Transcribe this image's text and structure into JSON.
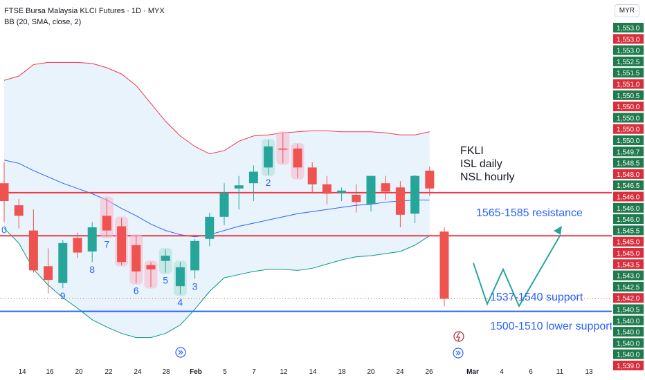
{
  "header": {
    "title": "FTSE Bursa Malaysia KLCI Futures · 1D · MYX",
    "indicator": "BB (20, SMA, close, 2)"
  },
  "currency": "MYR",
  "colors": {
    "up": "#26a69a",
    "down": "#ef5350",
    "upper_band": "#f23645",
    "middle_band": "#2962ff",
    "lower_band": "#089981",
    "band_fill": "#e3f0fa",
    "hline_red": "#f23645",
    "hline_blue": "#2962ff",
    "annotation": "#2962ff",
    "label_green": "#1f7a4d",
    "label_red": "#d92f3d"
  },
  "price_labels": [
    {
      "text": "1,553.0",
      "color": "green"
    },
    {
      "text": "1,553.0",
      "color": "red"
    },
    {
      "text": "1,553.0",
      "color": "green"
    },
    {
      "text": "1,552.5",
      "color": "green"
    },
    {
      "text": "1,551.5",
      "color": "green"
    },
    {
      "text": "1,551.0",
      "color": "red"
    },
    {
      "text": "1,550.5",
      "color": "green"
    },
    {
      "text": "1,550.0",
      "color": "red"
    },
    {
      "text": "1,550.0",
      "color": "green"
    },
    {
      "text": "1,550.0",
      "color": "red"
    },
    {
      "text": "1,550.0",
      "color": "green"
    },
    {
      "text": "1,549.7",
      "color": "green"
    },
    {
      "text": "1,548.5",
      "color": "green"
    },
    {
      "text": "1,548.0",
      "color": "red"
    },
    {
      "text": "1,546.5",
      "color": "green"
    },
    {
      "text": "1,546.0",
      "color": "red"
    },
    {
      "text": "1,546.0",
      "color": "green"
    },
    {
      "text": "1,546.0",
      "color": "green"
    },
    {
      "text": "1,545.5",
      "color": "green"
    },
    {
      "text": "1,545.0",
      "color": "red"
    },
    {
      "text": "1,545.0",
      "color": "red"
    },
    {
      "text": "1,543.5",
      "color": "red"
    },
    {
      "text": "1,543.0",
      "color": "green"
    },
    {
      "text": "1,542.5",
      "color": "green"
    },
    {
      "text": "1,542.0",
      "color": "red"
    },
    {
      "text": "1,540.5",
      "color": "green"
    },
    {
      "text": "1,540.0",
      "color": "green"
    },
    {
      "text": "1,540.0",
      "color": "green"
    },
    {
      "text": "1,540.0",
      "color": "green"
    },
    {
      "text": "1,540.0",
      "color": "green"
    },
    {
      "text": "1,539.0",
      "color": "red"
    }
  ],
  "x_labels": [
    {
      "text": "14",
      "bold": false
    },
    {
      "text": "16",
      "bold": false
    },
    {
      "text": "20",
      "bold": false
    },
    {
      "text": "22",
      "bold": false
    },
    {
      "text": "24",
      "bold": false
    },
    {
      "text": "28",
      "bold": false
    },
    {
      "text": "Feb",
      "bold": true
    },
    {
      "text": "5",
      "bold": false
    },
    {
      "text": "7",
      "bold": false
    },
    {
      "text": "12",
      "bold": false
    },
    {
      "text": "14",
      "bold": false
    },
    {
      "text": "18",
      "bold": false
    },
    {
      "text": "20",
      "bold": false
    },
    {
      "text": "24",
      "bold": false
    },
    {
      "text": "26",
      "bold": false
    },
    {
      "text": "Mar",
      "bold": true
    },
    {
      "text": "4",
      "bold": false
    },
    {
      "text": "6",
      "bold": false
    },
    {
      "text": "11",
      "bold": false
    },
    {
      "text": "13",
      "bold": false
    }
  ],
  "annotations": {
    "fkli": [
      "FKLI",
      "ISL daily",
      "NSL hourly"
    ],
    "resistance": "1565-1585 resistance",
    "support": "1537-1540 support",
    "lower_support": "1500-1510 lower support"
  },
  "chart_data": {
    "type": "candlestick",
    "title": "FTSE Bursa Malaysia KLCI Futures · 1D · MYX",
    "indicator": "BB (20, SMA, close, 2)",
    "y_axis": {
      "currency": "MYR",
      "scale": "nonlinear labels as printed"
    },
    "candles": [
      {
        "open": 1541.5,
        "high": 1543.5,
        "low": 1537.8,
        "close": 1539.8,
        "dir": "down"
      },
      {
        "open": 1539.4,
        "high": 1540.0,
        "low": 1537.2,
        "close": 1538.4,
        "dir": "down"
      },
      {
        "open": 1537.0,
        "high": 1539.0,
        "low": 1533.0,
        "close": 1533.2,
        "dir": "down"
      },
      {
        "open": 1533.6,
        "high": 1535.3,
        "low": 1531.0,
        "close": 1532.3,
        "dir": "down"
      },
      {
        "open": 1532.0,
        "high": 1536.1,
        "low": 1531.5,
        "close": 1535.8,
        "dir": "up"
      },
      {
        "open": 1536.3,
        "high": 1536.8,
        "low": 1534.4,
        "close": 1534.9,
        "dir": "down"
      },
      {
        "open": 1535.0,
        "high": 1537.8,
        "low": 1534.0,
        "close": 1537.3,
        "dir": "up"
      },
      {
        "open": 1538.4,
        "high": 1540.1,
        "low": 1536.4,
        "close": 1537.0,
        "dir": "down"
      },
      {
        "open": 1537.4,
        "high": 1538.2,
        "low": 1533.7,
        "close": 1534.0,
        "dir": "down"
      },
      {
        "open": 1535.6,
        "high": 1536.5,
        "low": 1532.0,
        "close": 1533.1,
        "dir": "down"
      },
      {
        "open": 1533.3,
        "high": 1534.0,
        "low": 1531.6,
        "close": 1533.7,
        "dir": "down"
      },
      {
        "open": 1534.1,
        "high": 1535.2,
        "low": 1533.0,
        "close": 1534.6,
        "dir": "up"
      },
      {
        "open": 1531.7,
        "high": 1534.0,
        "low": 1530.9,
        "close": 1533.5,
        "dir": "up"
      },
      {
        "open": 1533.2,
        "high": 1536.2,
        "low": 1532.4,
        "close": 1536.0,
        "dir": "up"
      },
      {
        "open": 1536.2,
        "high": 1538.7,
        "low": 1535.5,
        "close": 1538.3,
        "dir": "up"
      },
      {
        "open": 1538.3,
        "high": 1541.5,
        "low": 1537.5,
        "close": 1540.6,
        "dir": "up"
      },
      {
        "open": 1541.0,
        "high": 1542.2,
        "low": 1539.0,
        "close": 1541.3,
        "dir": "up"
      },
      {
        "open": 1541.5,
        "high": 1543.2,
        "low": 1539.8,
        "close": 1542.6,
        "dir": "up"
      },
      {
        "open": 1543.0,
        "high": 1545.6,
        "low": 1542.3,
        "close": 1545.0,
        "dir": "up"
      },
      {
        "open": 1544.8,
        "high": 1546.3,
        "low": 1543.4,
        "close": 1544.8,
        "dir": "down"
      },
      {
        "open": 1544.8,
        "high": 1545.2,
        "low": 1542.0,
        "close": 1543.0,
        "dir": "down"
      },
      {
        "open": 1543.0,
        "high": 1543.5,
        "low": 1540.5,
        "close": 1541.4,
        "dir": "down"
      },
      {
        "open": 1541.4,
        "high": 1542.2,
        "low": 1539.5,
        "close": 1540.5,
        "dir": "down"
      },
      {
        "open": 1540.6,
        "high": 1541.1,
        "low": 1539.8,
        "close": 1540.8,
        "dir": "up"
      },
      {
        "open": 1540.4,
        "high": 1541.4,
        "low": 1538.7,
        "close": 1539.7,
        "dir": "down"
      },
      {
        "open": 1539.5,
        "high": 1542.2,
        "low": 1538.8,
        "close": 1542.2,
        "dir": "up"
      },
      {
        "open": 1541.5,
        "high": 1542.2,
        "low": 1539.9,
        "close": 1540.7,
        "dir": "down"
      },
      {
        "open": 1541.1,
        "high": 1541.7,
        "low": 1537.3,
        "close": 1538.5,
        "dir": "down"
      },
      {
        "open": 1538.6,
        "high": 1542.3,
        "low": 1537.7,
        "close": 1542.2,
        "dir": "up"
      },
      {
        "open": 1542.7,
        "high": 1543.1,
        "low": 1540.3,
        "close": 1541.0,
        "dir": "down"
      },
      {
        "open": 1536.9,
        "high": 1537.3,
        "low": 1529.8,
        "close": 1530.5,
        "dir": "down"
      }
    ],
    "bollinger": {
      "upper": [
        1551.3,
        1551.7,
        1552.8,
        1553.0,
        1553.0,
        1553.0,
        1552.9,
        1552.5,
        1551.9,
        1550.8,
        1549.1,
        1547.4,
        1546.0,
        1545.0,
        1544.3,
        1544.6,
        1545.5,
        1546.0,
        1546.1,
        1546.3,
        1546.4,
        1546.5,
        1546.5,
        1546.4,
        1546.4,
        1546.4,
        1546.3,
        1546.1,
        1546.1,
        1546.4
      ],
      "middle": [
        1543.7,
        1543.4,
        1542.7,
        1542.1,
        1541.5,
        1541.0,
        1540.5,
        1539.9,
        1539.1,
        1538.4,
        1537.6,
        1537.0,
        1536.6,
        1536.4,
        1536.6,
        1537.0,
        1537.4,
        1537.7,
        1538.0,
        1538.3,
        1538.6,
        1538.8,
        1539.0,
        1539.2,
        1539.4,
        1539.5,
        1539.7,
        1539.8,
        1539.9,
        1539.9
      ],
      "lower": [
        1537.2,
        1535.8,
        1533.3,
        1531.8,
        1530.6,
        1529.6,
        1528.5,
        1527.8,
        1527.2,
        1526.8,
        1526.8,
        1527.2,
        1528.0,
        1529.5,
        1531.2,
        1532.5,
        1532.8,
        1533.1,
        1533.3,
        1533.3,
        1533.2,
        1533.4,
        1533.8,
        1534.2,
        1534.5,
        1534.6,
        1534.8,
        1535.0,
        1535.6,
        1536.5
      ]
    },
    "horizontal_lines": [
      {
        "price": 1540.6,
        "color": "red"
      },
      {
        "price": 1536.5,
        "color": "red"
      },
      {
        "price": 1529.3,
        "color": "blue"
      }
    ],
    "td_counts": [
      {
        "text": "0",
        "candle": 0
      },
      {
        "text": "9",
        "candle": 4
      },
      {
        "text": "7",
        "candle": 7
      },
      {
        "text": "8",
        "candle": 6
      },
      {
        "text": "6",
        "candle": 9
      },
      {
        "text": "5",
        "candle": 11
      },
      {
        "text": "4",
        "candle": 12
      },
      {
        "text": "3",
        "candle": 13
      },
      {
        "text": "2",
        "candle": 18
      }
    ],
    "projection": {
      "description": "zigzag projected path",
      "points": [
        [
          1533.9
        ],
        [
          1530.0
        ],
        [
          1533.3
        ],
        [
          1529.8
        ],
        [
          1536.6
        ]
      ]
    }
  }
}
